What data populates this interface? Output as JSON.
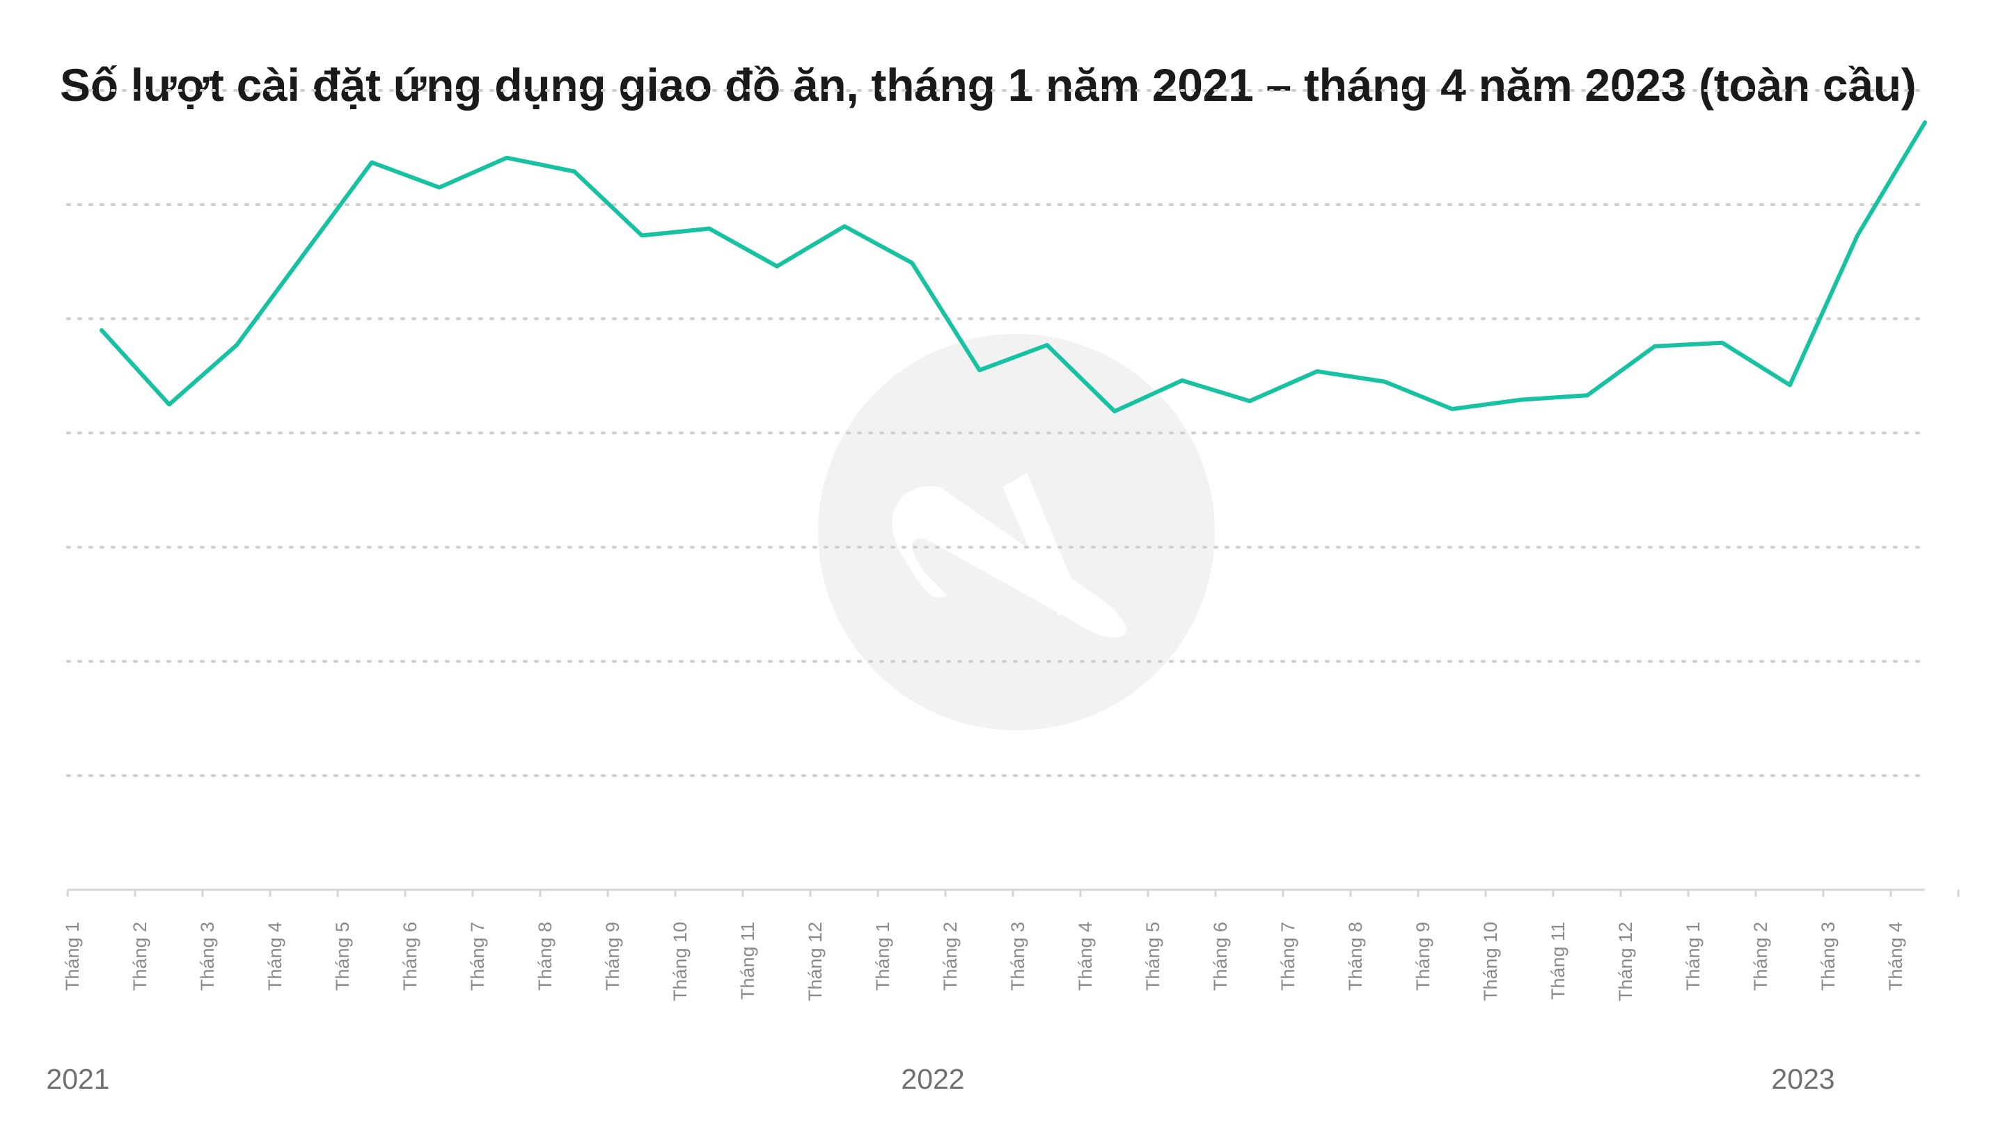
{
  "chart_data": {
    "type": "line",
    "title": "Số lượt cài đặt ứng dụng giao đồ ăn, tháng 1 năm 2021 – tháng 4 năm 2023 (toàn cầu)",
    "xlabel": "",
    "ylabel": "",
    "categories": [
      "Tháng 1",
      "Tháng 2",
      "Tháng 3",
      "Tháng 4",
      "Tháng 5",
      "Tháng 6",
      "Tháng 7",
      "Tháng 8",
      "Tháng 9",
      "Tháng 10",
      "Tháng 11",
      "Tháng 12",
      "Tháng 1",
      "Tháng 2",
      "Tháng 3",
      "Tháng 4",
      "Tháng 5",
      "Tháng 6",
      "Tháng 7",
      "Tháng 8",
      "Tháng 9",
      "Tháng 10",
      "Tháng 11",
      "Tháng 12",
      "Tháng 1",
      "Tháng 2",
      "Tháng 3",
      "Tháng 4"
    ],
    "year_labels": [
      {
        "label": "2021",
        "index": 0
      },
      {
        "label": "2022",
        "index": 13
      },
      {
        "label": "2023",
        "index": 26
      }
    ],
    "values": [
      4.9,
      4.25,
      4.77,
      5.57,
      6.37,
      6.15,
      6.41,
      6.29,
      5.73,
      5.79,
      5.46,
      5.81,
      5.49,
      4.55,
      4.77,
      4.19,
      4.46,
      4.28,
      4.54,
      4.45,
      4.21,
      4.29,
      4.33,
      4.76,
      4.79,
      4.42,
      5.73,
      6.72
    ],
    "ylim": [
      0,
      7
    ],
    "grid": true,
    "y_ticks_visible": false,
    "legend": "none",
    "line_color": "#17c2a2"
  }
}
